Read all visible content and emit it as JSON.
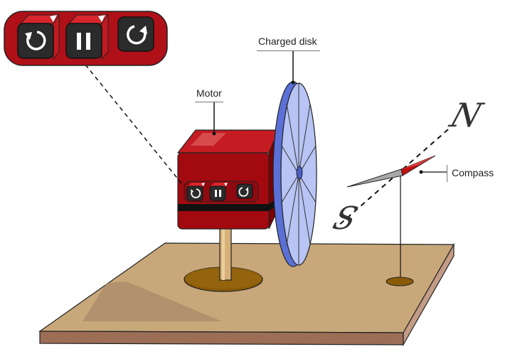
{
  "labels": {
    "motor": "Motor",
    "charged_disk": "Charged disk",
    "compass": "Compass"
  },
  "compass_poles": {
    "north": "N",
    "south": "S"
  },
  "controls": [
    {
      "id": "reverse",
      "icon": "rotate-counterclockwise-icon"
    },
    {
      "id": "pause",
      "icon": "pause-icon"
    },
    {
      "id": "forward",
      "icon": "rotate-clockwise-icon"
    }
  ],
  "colors": {
    "motor_red": "#a30a10",
    "motor_dark": "#7e0000",
    "panel_red": "#b01018",
    "button_black": "#2b2b2b",
    "disk_blue": "#6f86e0",
    "disk_face": "#b8c4f4",
    "table_top": "#c8a87a",
    "table_side": "#a0745a",
    "compass_red": "#c01010",
    "compass_grey": "#9a9a9a"
  }
}
